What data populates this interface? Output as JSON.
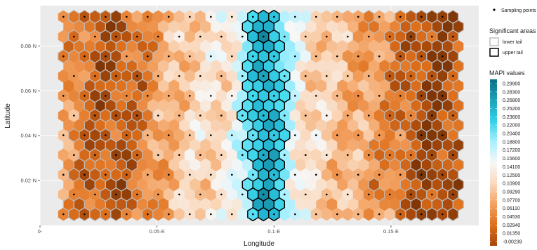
{
  "chart_data": {
    "type": "heatmap",
    "title": "",
    "xlabel": "Longitude",
    "ylabel": "Latitude",
    "xlim": [
      0,
      0.1875
    ],
    "ylim": [
      0,
      0.098
    ],
    "x_ticks": [
      {
        "value": 0,
        "label": "0-"
      },
      {
        "value": 0.05,
        "label": "0.05·E"
      },
      {
        "value": 0.1,
        "label": "0.1·E"
      },
      {
        "value": 0.15,
        "label": "0.15·E"
      }
    ],
    "y_ticks": [
      {
        "value": 0.02,
        "label": "0.02·N"
      },
      {
        "value": 0.04,
        "label": "0.04·N"
      },
      {
        "value": 0.06,
        "label": "0.06·N"
      },
      {
        "value": 0.08,
        "label": "0.08·N"
      }
    ],
    "grid": true,
    "panel_background": "#ebebeb",
    "hex_grid": {
      "x_min": 0.01,
      "x_max": 0.18,
      "y_min": 0.005,
      "y_max": 0.093,
      "dx": 0.0045,
      "rows": 21
    },
    "sampling_points": {
      "x_min": 0.01,
      "x_max": 0.18,
      "dx": 0.009,
      "y_values": [
        0.005,
        0.0138,
        0.0226,
        0.0314,
        0.0402,
        0.049,
        0.0578,
        0.0666,
        0.0754,
        0.0842,
        0.093
      ]
    },
    "significant_areas": {
      "upper_tail": {
        "x_min": 0.083,
        "x_max": 0.11,
        "description_values": "cyan central band"
      },
      "lower_tail": [
        {
          "x_min": 0.01,
          "x_max": 0.06
        },
        {
          "x_min": 0.13,
          "x_max": 0.18
        }
      ]
    },
    "legend": {
      "placement": "right",
      "points_label": "Sampling points",
      "areas_title": "Significant areas",
      "areas": [
        {
          "label": "lower tail",
          "stroke": "#bdbdbd"
        },
        {
          "label": "upper tail",
          "stroke": "#000000"
        }
      ],
      "colorbar_title": "MAPI values",
      "colorbar_labels": [
        "0.29900",
        "0.28300",
        "0.26800",
        "0.25200",
        "0.23600",
        "0.22000",
        "0.20400",
        "0.18800",
        "0.17200",
        "0.15600",
        "0.14100",
        "0.12500",
        "0.10900",
        "0.09290",
        "0.07700",
        "0.06110",
        "0.04530",
        "0.02940",
        "0.01350",
        "-0.00239"
      ],
      "colorbar_colors": [
        "#0b6f86",
        "#1aa3b8",
        "#33d1e8",
        "#a8efff",
        "#f7f7f7",
        "#fad9bd",
        "#f3a262",
        "#dd6e1a",
        "#a6460b"
      ]
    }
  }
}
